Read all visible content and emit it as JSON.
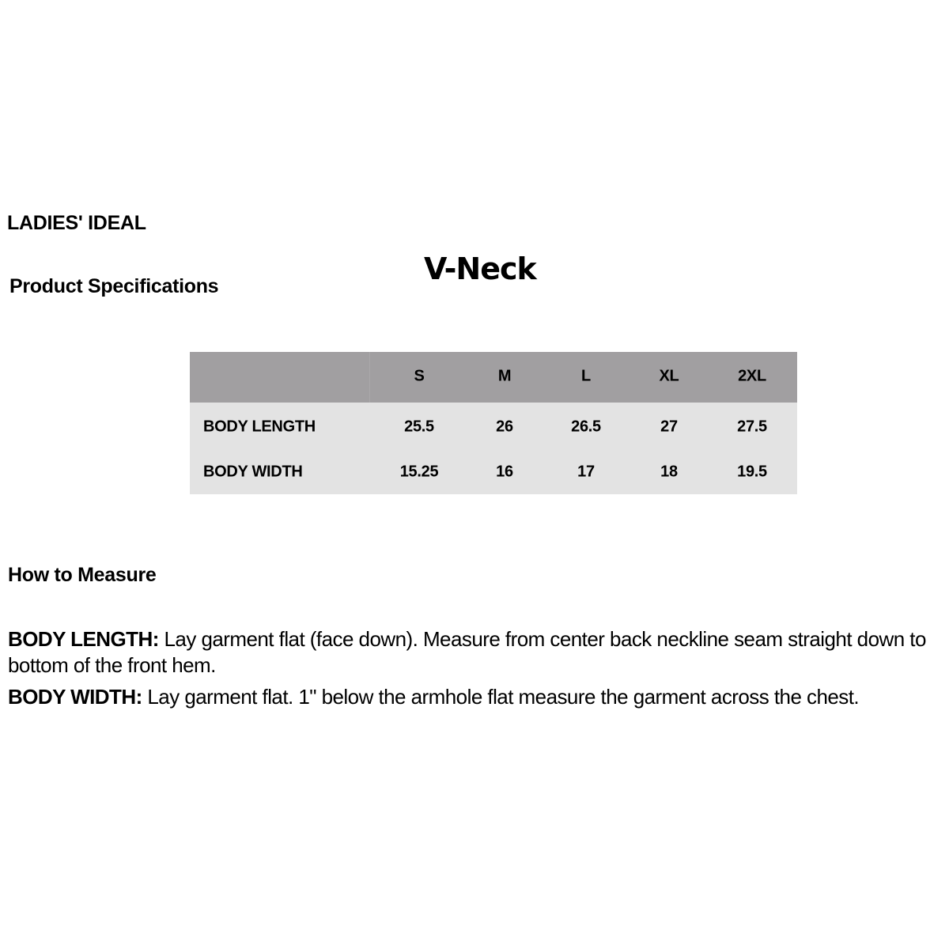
{
  "header": {
    "brand": "LADIES' IDEAL",
    "subtitle": "Product Specifications",
    "product_name": "V-Neck"
  },
  "size_table": {
    "columns": [
      "S",
      "M",
      "L",
      "XL",
      "2XL"
    ],
    "rows": [
      {
        "label": "BODY LENGTH",
        "values": [
          "25.5",
          "26",
          "26.5",
          "27",
          "27.5"
        ]
      },
      {
        "label": "BODY WIDTH",
        "values": [
          "15.25",
          "16",
          "17",
          "18",
          "19.5"
        ]
      }
    ],
    "colors": {
      "header_bg": "#a19fa1",
      "body_bg": "#e3e3e3"
    }
  },
  "how_to_measure": {
    "title": "How to Measure",
    "items": [
      {
        "label": "BODY LENGTH:",
        "text": "Lay garment flat (face down). Measure from center back neckline seam straight down to bottom of the front hem."
      },
      {
        "label": "BODY WIDTH:",
        "text": "Lay garment flat. 1\" below the armhole flat measure the garment across the chest."
      }
    ]
  }
}
